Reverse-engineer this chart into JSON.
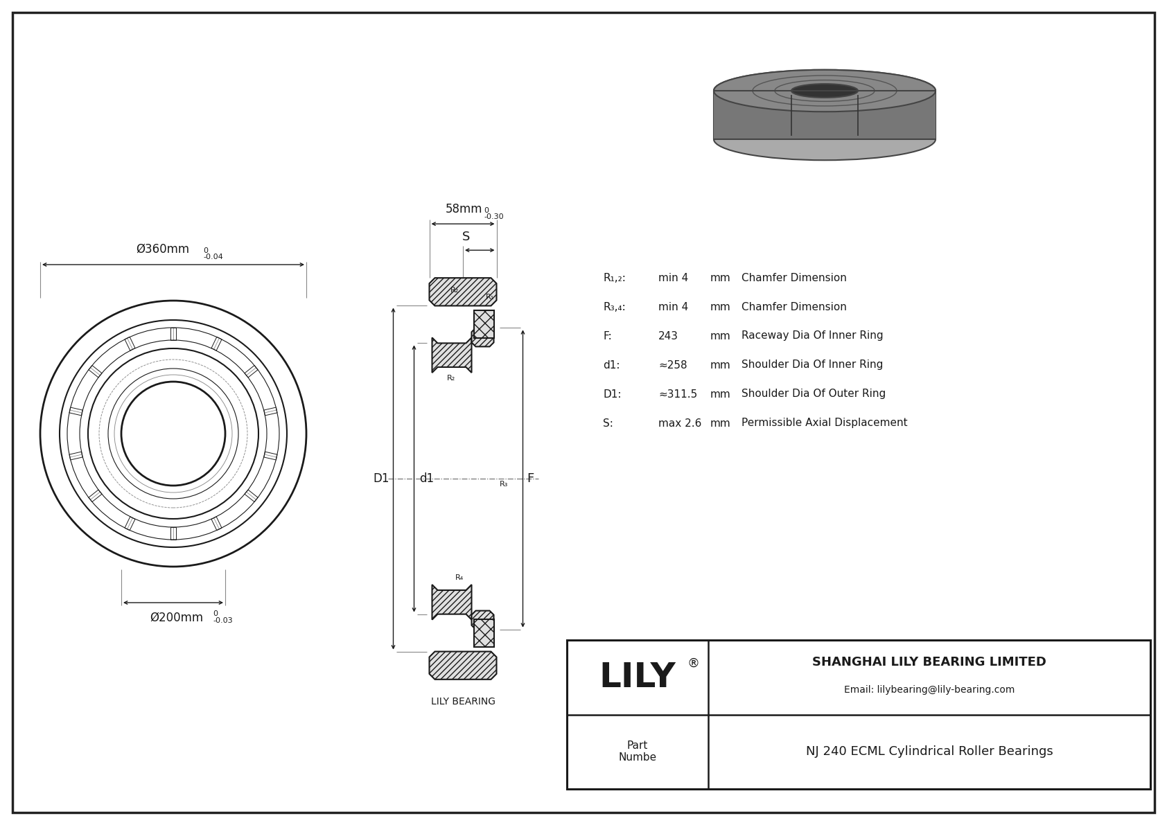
{
  "line_color": "#1a1a1a",
  "title": "NJ 240 ECML Cylindrical Roller Bearings",
  "company": "SHANGHAI LILY BEARING LIMITED",
  "email": "Email: lilybearing@lily-bearing.com",
  "part_label": "Part\nNumbe",
  "lily_brand": "LILY",
  "lily_bearing_label": "LILY BEARING",
  "dim_outer": "Ø360mm",
  "dim_outer_tol_top": "0",
  "dim_outer_tol_bot": "-0.04",
  "dim_inner": "Ø200mm",
  "dim_inner_tol_top": "0",
  "dim_inner_tol_bot": "-0.03",
  "dim_width": "58mm",
  "dim_width_tol_top": "0",
  "dim_width_tol_bot": "-0.30",
  "params": [
    [
      "R₁,₂:",
      "min 4",
      "mm",
      "Chamfer Dimension"
    ],
    [
      "R₃,₄:",
      "min 4",
      "mm",
      "Chamfer Dimension"
    ],
    [
      "F:",
      "243",
      "mm",
      "Raceway Dia Of Inner Ring"
    ],
    [
      "d1:",
      "≈258",
      "mm",
      "Shoulder Dia Of Inner Ring"
    ],
    [
      "D1:",
      "≈311.5",
      "mm",
      "Shoulder Dia Of Outer Ring"
    ],
    [
      "S:",
      "max 2.6",
      "mm",
      "Permissible Axial Displacement"
    ]
  ]
}
